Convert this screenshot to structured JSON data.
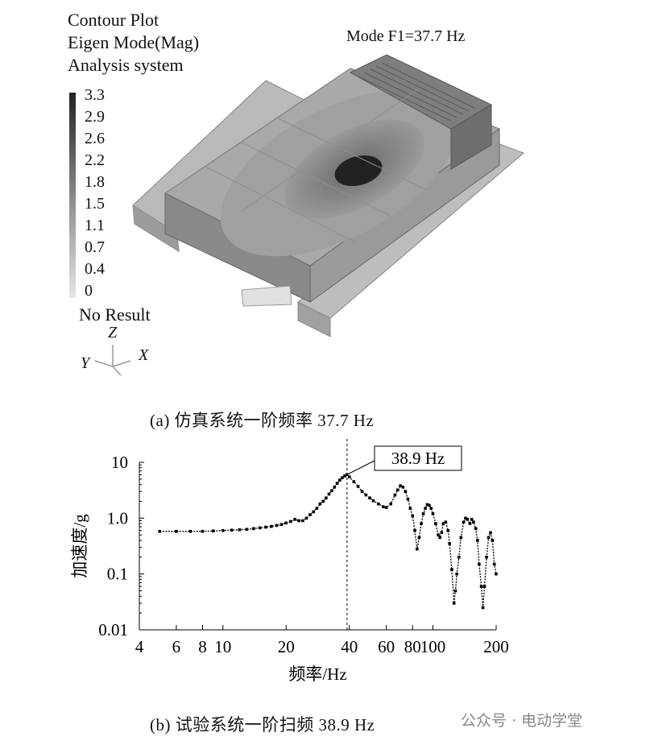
{
  "sim": {
    "title_lines": [
      "Contour Plot",
      "Eigen Mode(Mag)",
      "Analysis system"
    ],
    "mode_label": "Mode F1=37.7 Hz",
    "legend_values": [
      "3.3",
      "2.9",
      "2.6",
      "2.2",
      "1.8",
      "1.5",
      "1.1",
      "0.7",
      "0.4",
      "0"
    ],
    "no_result": "No Result",
    "axes": {
      "z": "Z",
      "y": "Y",
      "x": "X"
    },
    "caption": "(a)  仿真系统一阶频率 37.7 Hz"
  },
  "chart_data": {
    "type": "line",
    "xscale": "log",
    "yscale": "log",
    "xlabel": "频率/Hz",
    "ylabel": "加速度/g",
    "xlim": [
      4,
      200
    ],
    "ylim": [
      0.01,
      10
    ],
    "xticks": [
      4,
      6,
      8,
      10,
      20,
      40,
      60,
      80,
      100,
      200
    ],
    "xtick_labels": [
      "4",
      "6",
      "8",
      "10",
      "20",
      "40",
      "60",
      "80",
      "100",
      "200"
    ],
    "yticks": [
      0.01,
      0.1,
      1,
      10
    ],
    "ytick_labels": [
      "0.01",
      "0.1",
      "1.0",
      "10"
    ],
    "marker_line_x": 39,
    "annotation": {
      "text": "38.9 Hz",
      "x": 38.9,
      "y": 6
    },
    "series": [
      {
        "x": [
          5,
          6,
          7,
          8,
          9,
          10,
          11,
          12,
          13,
          14,
          15,
          16,
          17,
          18,
          19,
          20,
          21,
          22,
          23,
          24,
          25,
          26,
          27,
          28,
          29,
          30,
          31,
          32,
          33,
          34,
          35,
          36,
          37,
          38,
          38.9,
          40,
          42,
          44,
          46,
          48,
          50,
          52,
          55,
          58,
          60,
          63,
          66,
          68,
          70,
          72,
          74,
          76,
          78,
          80,
          82,
          84,
          86,
          88,
          90,
          92,
          94,
          96,
          98,
          100,
          103,
          106,
          108,
          110,
          112,
          115,
          118,
          120,
          123,
          126,
          128,
          130,
          133,
          136,
          140,
          143,
          146,
          150,
          153,
          156,
          160,
          163,
          166,
          170,
          173,
          176,
          180,
          184,
          188,
          192,
          196,
          200
        ],
        "y": [
          0.58,
          0.58,
          0.58,
          0.58,
          0.59,
          0.6,
          0.61,
          0.62,
          0.63,
          0.65,
          0.67,
          0.69,
          0.71,
          0.74,
          0.77,
          0.82,
          0.87,
          0.95,
          0.9,
          0.9,
          1.0,
          1.15,
          1.3,
          1.5,
          1.8,
          2.0,
          2.3,
          2.7,
          3.1,
          3.6,
          4.2,
          4.8,
          5.3,
          5.7,
          6.0,
          5.5,
          4.5,
          3.7,
          3.0,
          2.6,
          2.3,
          2.05,
          1.8,
          1.6,
          1.55,
          1.8,
          2.6,
          3.2,
          3.8,
          3.6,
          3.0,
          2.2,
          1.5,
          1.1,
          0.6,
          0.28,
          0.45,
          0.8,
          1.2,
          1.5,
          1.75,
          1.7,
          1.5,
          1.2,
          0.8,
          0.5,
          0.45,
          0.55,
          0.8,
          0.85,
          0.6,
          0.35,
          0.12,
          0.03,
          0.05,
          0.1,
          0.2,
          0.45,
          0.85,
          1.0,
          0.95,
          0.8,
          0.95,
          0.85,
          0.65,
          0.4,
          0.15,
          0.06,
          0.025,
          0.06,
          0.2,
          0.45,
          0.55,
          0.4,
          0.15,
          0.1
        ]
      }
    ],
    "caption": "(b)  试验系统一阶扫频 38.9 Hz"
  },
  "watermark": "公众号 · 电动学堂",
  "colors": {
    "dark": "#1a1a1a",
    "accent": "#444444"
  }
}
